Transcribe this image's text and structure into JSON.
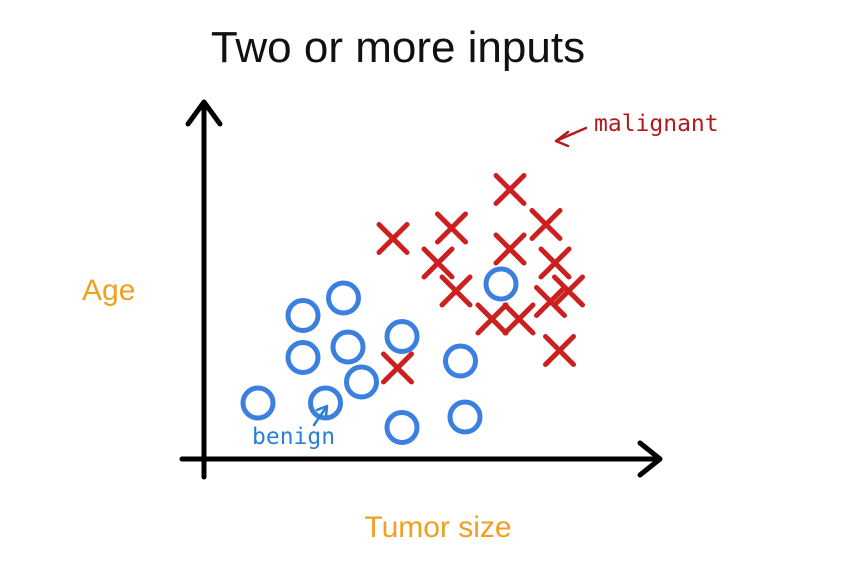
{
  "chart_data": {
    "type": "scatter",
    "title": "Two or more inputs",
    "xlabel": "Tumor size",
    "ylabel": "Age",
    "xlim": [
      0,
      10
    ],
    "ylim": [
      0,
      10
    ],
    "grid": false,
    "legend": "none",
    "series": [
      {
        "marker": "o",
        "color": "#3b7fe0",
        "points": [
          [
            1.2,
            1.6
          ],
          [
            2.2,
            4.1
          ],
          [
            3.1,
            4.6
          ],
          [
            2.2,
            2.9
          ],
          [
            3.2,
            3.2
          ],
          [
            4.4,
            3.5
          ],
          [
            3.5,
            2.2
          ],
          [
            2.7,
            1.6
          ],
          [
            4.4,
            0.9
          ],
          [
            5.7,
            2.8
          ],
          [
            5.8,
            1.2
          ],
          [
            6.6,
            5.0
          ]
        ]
      },
      {
        "marker": "x",
        "color": "#cc1f1f",
        "points": [
          [
            4.2,
            6.3
          ],
          [
            5.5,
            6.6
          ],
          [
            6.8,
            7.7
          ],
          [
            7.6,
            6.7
          ],
          [
            6.8,
            6.0
          ],
          [
            5.2,
            5.6
          ],
          [
            5.6,
            4.8
          ],
          [
            7.8,
            5.6
          ],
          [
            8.1,
            4.8
          ],
          [
            7.7,
            4.5
          ],
          [
            6.4,
            4.0
          ],
          [
            7.0,
            4.0
          ],
          [
            7.9,
            3.1
          ],
          [
            4.3,
            2.6
          ]
        ]
      }
    ],
    "annotations": [
      {
        "text": "malignant",
        "color": "#b01c1c"
      },
      {
        "text": "benign",
        "color": "#2a7fd9"
      }
    ],
    "colors": {
      "axis_label": "#f0a020",
      "axis": "#000000"
    }
  }
}
